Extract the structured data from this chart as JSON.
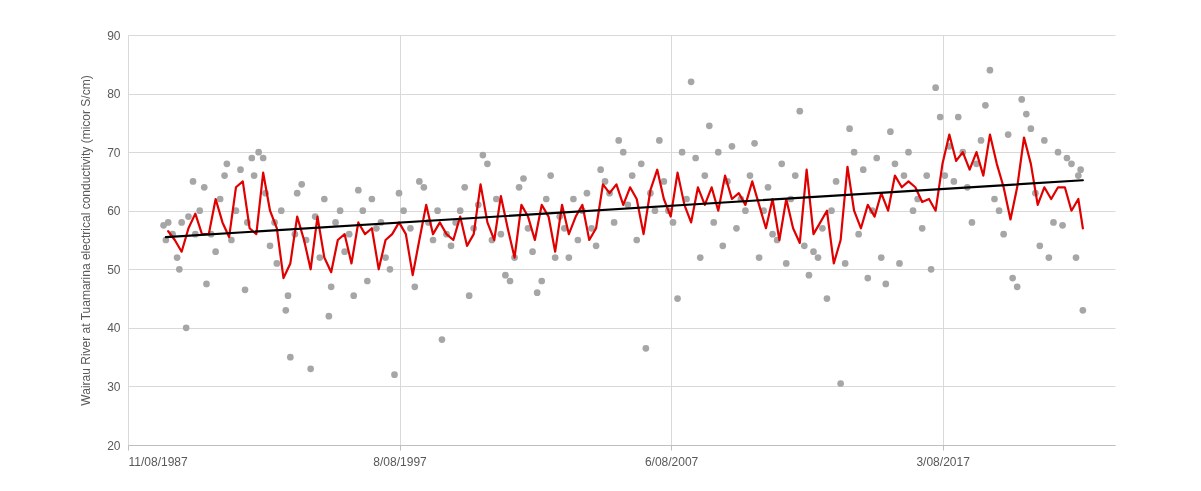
{
  "chart_data": {
    "type": "scatter",
    "ylabel": "Wairau River at Tuamarina electrical conductivity (micor S/cm)",
    "xlim": [
      "1987-08-11",
      "2023-12-07"
    ],
    "xticks": [
      {
        "value": "1987-08-11",
        "label": "11/08/1987"
      },
      {
        "value": "1997-08-08",
        "label": "8/08/1997"
      },
      {
        "value": "2007-08-06",
        "label": "6/08/2007"
      },
      {
        "value": "2017-08-03",
        "label": "3/08/2017"
      }
    ],
    "ylim": [
      20,
      90
    ],
    "yticks": [
      20,
      30,
      40,
      50,
      60,
      70,
      80,
      90
    ],
    "grid": true,
    "series": [
      {
        "color": "#a6a6a6",
        "marker": "circle",
        "x": [
          "1988-12",
          "1989-01",
          "1989-02",
          "1989-04",
          "1989-06",
          "1989-07",
          "1989-08",
          "1989-10",
          "1989-11",
          "1990-01",
          "1990-02",
          "1990-04",
          "1990-06",
          "1990-07",
          "1990-09",
          "1990-11",
          "1991-01",
          "1991-03",
          "1991-04",
          "1991-06",
          "1991-08",
          "1991-10",
          "1991-12",
          "1992-01",
          "1992-03",
          "1992-04",
          "1992-06",
          "1992-08",
          "1992-09",
          "1992-11",
          "1993-01",
          "1993-02",
          "1993-04",
          "1993-06",
          "1993-07",
          "1993-08",
          "1993-10",
          "1993-11",
          "1994-01",
          "1994-03",
          "1994-05",
          "1994-07",
          "1994-09",
          "1994-11",
          "1995-01",
          "1995-02",
          "1995-04",
          "1995-06",
          "1995-08",
          "1995-10",
          "1995-12",
          "1996-02",
          "1996-04",
          "1996-06",
          "1996-08",
          "1996-10",
          "1996-12",
          "1997-02",
          "1997-04",
          "1997-06",
          "1997-08",
          "1997-10",
          "1998-01",
          "1998-03",
          "1998-05",
          "1998-07",
          "1998-09",
          "1998-11",
          "1999-01",
          "1999-03",
          "1999-05",
          "1999-07",
          "1999-09",
          "1999-11",
          "2000-01",
          "2000-03",
          "2000-05",
          "2000-07",
          "2000-09",
          "2000-11",
          "2001-01",
          "2001-03",
          "2001-05",
          "2001-07",
          "2001-09",
          "2001-11",
          "2002-01",
          "2002-03",
          "2002-05",
          "2002-07",
          "2002-09",
          "2002-11",
          "2003-01",
          "2003-03",
          "2003-05",
          "2003-07",
          "2003-09",
          "2003-11",
          "2004-01",
          "2004-03",
          "2004-05",
          "2004-07",
          "2004-09",
          "2004-11",
          "2005-01",
          "2005-03",
          "2005-05",
          "2005-07",
          "2005-09",
          "2005-11",
          "2006-01",
          "2006-03",
          "2006-05",
          "2006-07",
          "2006-09",
          "2006-11",
          "2007-01",
          "2007-03",
          "2007-05",
          "2007-07",
          "2007-09",
          "2007-11",
          "2008-01",
          "2008-03",
          "2008-05",
          "2008-07",
          "2008-09",
          "2008-11",
          "2009-01",
          "2009-03",
          "2009-05",
          "2009-07",
          "2009-09",
          "2009-11",
          "2010-01",
          "2010-03",
          "2010-05",
          "2010-07",
          "2010-09",
          "2010-11",
          "2011-01",
          "2011-03",
          "2011-05",
          "2011-07",
          "2011-09",
          "2011-11",
          "2012-01",
          "2012-03",
          "2012-05",
          "2012-07",
          "2012-09",
          "2012-11",
          "2013-01",
          "2013-03",
          "2013-05",
          "2013-07",
          "2013-09",
          "2013-11",
          "2014-01",
          "2014-03",
          "2014-05",
          "2014-07",
          "2014-09",
          "2014-11",
          "2015-01",
          "2015-03",
          "2015-05",
          "2015-07",
          "2015-09",
          "2015-11",
          "2016-01",
          "2016-03",
          "2016-05",
          "2016-07",
          "2016-09",
          "2016-11",
          "2017-01",
          "2017-03",
          "2017-05",
          "2017-07",
          "2017-09",
          "2017-11",
          "2018-01",
          "2018-03",
          "2018-05",
          "2018-07",
          "2018-09",
          "2018-11",
          "2019-01",
          "2019-03",
          "2019-05",
          "2019-07",
          "2019-09",
          "2019-11",
          "2020-01",
          "2020-03",
          "2020-05",
          "2020-07",
          "2020-09",
          "2020-11",
          "2021-01",
          "2021-03",
          "2021-05",
          "2021-07",
          "2021-09",
          "2021-11",
          "2022-01",
          "2022-03",
          "2022-05",
          "2022-07",
          "2022-08",
          "2022-09",
          "2022-10"
        ],
        "values": [
          57.5,
          55,
          58,
          56,
          52,
          50,
          58,
          40,
          59,
          65,
          56,
          60,
          64,
          47.5,
          56,
          53,
          62,
          66,
          68,
          55,
          60,
          67,
          46.5,
          58,
          69,
          66,
          70,
          69,
          63,
          54,
          58,
          51,
          60,
          43,
          45.5,
          35,
          56,
          63,
          64.5,
          55,
          33,
          59,
          52,
          62,
          42,
          47,
          58,
          60,
          53,
          56,
          45.5,
          63.5,
          60,
          48,
          62,
          57,
          58,
          52,
          50,
          32,
          63,
          60,
          57,
          47,
          65,
          64,
          58,
          55,
          60,
          38,
          56,
          54,
          58,
          60,
          64,
          45.5,
          57,
          61,
          69.5,
          68,
          55,
          62,
          56,
          49,
          48,
          52,
          64,
          65.5,
          57,
          53,
          46,
          48,
          62,
          66,
          52,
          59,
          57,
          52,
          62,
          55,
          60,
          63,
          57,
          54,
          67,
          65,
          63,
          58,
          72,
          70,
          61,
          66,
          55,
          68,
          36.5,
          63,
          60,
          72,
          65,
          60,
          58,
          45,
          70,
          62,
          82,
          69,
          52,
          66,
          74.5,
          58,
          70,
          54,
          65,
          71,
          57,
          62,
          60,
          66,
          71.5,
          52,
          60,
          64,
          56,
          55,
          68,
          51,
          62,
          66,
          77,
          54,
          49,
          53,
          52,
          57,
          45,
          60,
          65,
          30.5,
          51,
          74,
          70,
          56,
          67,
          48.5,
          60,
          69,
          52,
          47.5,
          73.5,
          68,
          51,
          66,
          70,
          60,
          62,
          57,
          66,
          50,
          81,
          76,
          66,
          71,
          65,
          76,
          70,
          64,
          58,
          68,
          72,
          78,
          84,
          62,
          60,
          56,
          73,
          48.5,
          47,
          79,
          76.5,
          74,
          63,
          54,
          72,
          52,
          58,
          70,
          57.5,
          69,
          68,
          52,
          66,
          67,
          43
        ]
      },
      {
        "type": "line",
        "color": "#e00000",
        "x": [
          "1989-02",
          "1989-05",
          "1989-08",
          "1989-11",
          "1990-02",
          "1990-05",
          "1990-08",
          "1990-11",
          "1991-02",
          "1991-05",
          "1991-08",
          "1991-11",
          "1992-02",
          "1992-05",
          "1992-08",
          "1992-11",
          "1993-02",
          "1993-05",
          "1993-08",
          "1993-11",
          "1994-02",
          "1994-05",
          "1994-08",
          "1994-11",
          "1995-02",
          "1995-05",
          "1995-08",
          "1995-11",
          "1996-02",
          "1996-05",
          "1996-08",
          "1996-11",
          "1997-02",
          "1997-05",
          "1997-08",
          "1997-11",
          "1998-02",
          "1998-05",
          "1998-08",
          "1998-11",
          "1999-02",
          "1999-05",
          "1999-08",
          "1999-11",
          "2000-02",
          "2000-05",
          "2000-08",
          "2000-11",
          "2001-02",
          "2001-05",
          "2001-08",
          "2001-11",
          "2002-02",
          "2002-05",
          "2002-08",
          "2002-11",
          "2003-02",
          "2003-05",
          "2003-08",
          "2003-11",
          "2004-02",
          "2004-05",
          "2004-08",
          "2004-11",
          "2005-02",
          "2005-05",
          "2005-08",
          "2005-11",
          "2006-02",
          "2006-05",
          "2006-08",
          "2006-11",
          "2007-02",
          "2007-05",
          "2007-08",
          "2007-11",
          "2008-02",
          "2008-05",
          "2008-08",
          "2008-11",
          "2009-02",
          "2009-05",
          "2009-08",
          "2009-11",
          "2010-02",
          "2010-05",
          "2010-08",
          "2010-11",
          "2011-02",
          "2011-05",
          "2011-08",
          "2011-11",
          "2012-02",
          "2012-05",
          "2012-08",
          "2012-11",
          "2013-02",
          "2013-05",
          "2013-08",
          "2013-11",
          "2014-02",
          "2014-05",
          "2014-08",
          "2014-11",
          "2015-02",
          "2015-05",
          "2015-08",
          "2015-11",
          "2016-02",
          "2016-05",
          "2016-08",
          "2016-11",
          "2017-02",
          "2017-05",
          "2017-08",
          "2017-11",
          "2018-02",
          "2018-05",
          "2018-08",
          "2018-11",
          "2019-02",
          "2019-05",
          "2019-08",
          "2019-11",
          "2020-02",
          "2020-05",
          "2020-08",
          "2020-11",
          "2021-02",
          "2021-05",
          "2021-08",
          "2021-11",
          "2022-02",
          "2022-05",
          "2022-08",
          "2022-10"
        ],
        "values": [
          56.5,
          55,
          53,
          57,
          59.5,
          56,
          56,
          62,
          58,
          55.5,
          64,
          65,
          57,
          56,
          66.5,
          60,
          57,
          48.5,
          51,
          59,
          55,
          50,
          59,
          52,
          49.5,
          55,
          56,
          51,
          58,
          56,
          57,
          50,
          55,
          56,
          58,
          56,
          49,
          55,
          61,
          56,
          58,
          56,
          55,
          59,
          54,
          56,
          64.5,
          58,
          55,
          62.5,
          57,
          52,
          61,
          59,
          55,
          61,
          59,
          53,
          61,
          56,
          59,
          61,
          55,
          57,
          64.5,
          63,
          64.5,
          61,
          64,
          62,
          56,
          63.5,
          67,
          62,
          59,
          66.5,
          61,
          58,
          64,
          61,
          64,
          60,
          66,
          62,
          63,
          61,
          65,
          61,
          57,
          62,
          55,
          62,
          57,
          54.5,
          67,
          56,
          58,
          60,
          51,
          55,
          67.5,
          60,
          57,
          61,
          59,
          63,
          60,
          66,
          64,
          65,
          64,
          61.5,
          62,
          60,
          68,
          73,
          68.5,
          70,
          67,
          70,
          66,
          73,
          68,
          64,
          58.5,
          64,
          72.5,
          68,
          61,
          64,
          62,
          64,
          64,
          60,
          62,
          57
        ]
      },
      {
        "type": "line",
        "color": "#000000",
        "x": [
          "1989-01",
          "2022-10"
        ],
        "values": [
          55.5,
          65.2
        ]
      }
    ]
  }
}
